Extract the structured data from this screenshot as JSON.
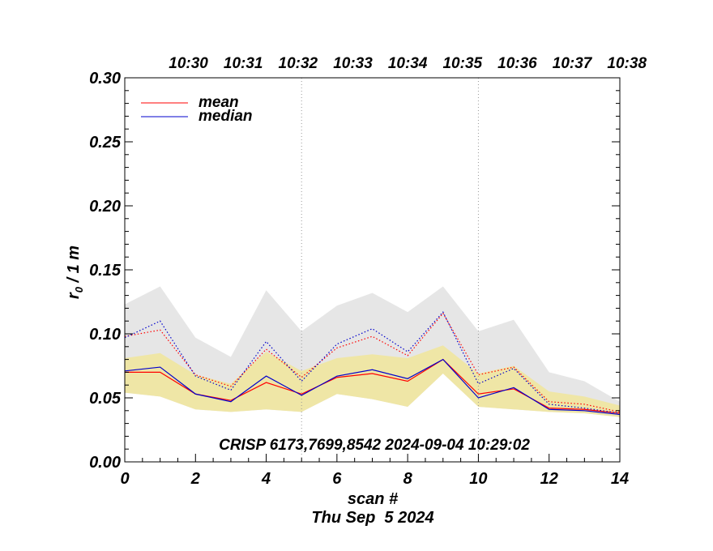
{
  "chart_data": {
    "type": "line",
    "xlabel": "scan #",
    "subtitle": "Thu Sep  5 2024",
    "ylabel_main": "r",
    "ylabel_sub": "0",
    "ylabel_rest": " / 1 m",
    "annotation": "CRISP 6173,7699,8542 2024-09-04 10:29:02",
    "xlim": [
      0,
      14
    ],
    "ylim": [
      0,
      0.3
    ],
    "x_ticks": [
      0,
      2,
      4,
      6,
      8,
      10,
      12,
      14
    ],
    "x_tick_labels": [
      "0",
      "2",
      "4",
      "6",
      "8",
      "10",
      "12",
      "14"
    ],
    "y_ticks": [
      0,
      0.05,
      0.1,
      0.15,
      0.2,
      0.25,
      0.3
    ],
    "y_tick_labels": [
      "0.00",
      "0.05",
      "0.10",
      "0.15",
      "0.20",
      "0.25",
      "0.30"
    ],
    "top_axis_labels": [
      {
        "x": 1.8,
        "label": "10:30"
      },
      {
        "x": 3.35,
        "label": "10:31"
      },
      {
        "x": 4.9,
        "label": "10:32"
      },
      {
        "x": 6.45,
        "label": "10:33"
      },
      {
        "x": 8.0,
        "label": "10:34"
      },
      {
        "x": 9.55,
        "label": "10:35"
      },
      {
        "x": 11.1,
        "label": "10:36"
      },
      {
        "x": 12.65,
        "label": "10:37"
      },
      {
        "x": 14.2,
        "label": "10:38"
      }
    ],
    "vertical_dotted_lines_x": [
      5,
      10
    ],
    "legend": [
      {
        "label": "mean",
        "color": "#ff0000"
      },
      {
        "label": "median",
        "color": "#0000cc"
      }
    ],
    "x": [
      0,
      1,
      2,
      3,
      4,
      5,
      6,
      7,
      8,
      9,
      10,
      11,
      12,
      13,
      14
    ],
    "gray_band": {
      "upper": [
        0.123,
        0.137,
        0.097,
        0.082,
        0.134,
        0.102,
        0.122,
        0.132,
        0.117,
        0.137,
        0.102,
        0.111,
        0.07,
        0.063,
        0.047
      ],
      "lower": [
        0.054,
        0.051,
        0.041,
        0.039,
        0.041,
        0.039,
        0.053,
        0.049,
        0.043,
        0.069,
        0.043,
        0.041,
        0.039,
        0.038,
        0.035
      ],
      "color": "#e6e6e6"
    },
    "yellow_band": {
      "upper": [
        0.081,
        0.085,
        0.068,
        0.061,
        0.086,
        0.071,
        0.081,
        0.084,
        0.081,
        0.091,
        0.069,
        0.075,
        0.055,
        0.051,
        0.044
      ],
      "lower": [
        0.054,
        0.051,
        0.041,
        0.039,
        0.041,
        0.039,
        0.053,
        0.049,
        0.043,
        0.069,
        0.043,
        0.041,
        0.039,
        0.038,
        0.035
      ],
      "color": "#efe6a6"
    },
    "series": [
      {
        "name": "mean",
        "style": "solid",
        "color": "#ff0000",
        "values": [
          0.07,
          0.07,
          0.053,
          0.048,
          0.062,
          0.053,
          0.066,
          0.069,
          0.063,
          0.08,
          0.053,
          0.057,
          0.042,
          0.041,
          0.038
        ]
      },
      {
        "name": "median",
        "style": "solid",
        "color": "#0000cc",
        "values": [
          0.071,
          0.074,
          0.053,
          0.047,
          0.067,
          0.052,
          0.067,
          0.072,
          0.065,
          0.08,
          0.05,
          0.058,
          0.041,
          0.04,
          0.037
        ]
      },
      {
        "style": "dotted",
        "color": "#ff0000",
        "values": [
          0.098,
          0.103,
          0.068,
          0.059,
          0.088,
          0.066,
          0.089,
          0.098,
          0.083,
          0.116,
          0.068,
          0.074,
          0.047,
          0.045,
          0.039
        ]
      },
      {
        "style": "dotted",
        "color": "#0000cc",
        "values": [
          0.097,
          0.11,
          0.067,
          0.056,
          0.094,
          0.063,
          0.092,
          0.104,
          0.086,
          0.117,
          0.061,
          0.073,
          0.045,
          0.042,
          0.038
        ]
      }
    ]
  }
}
